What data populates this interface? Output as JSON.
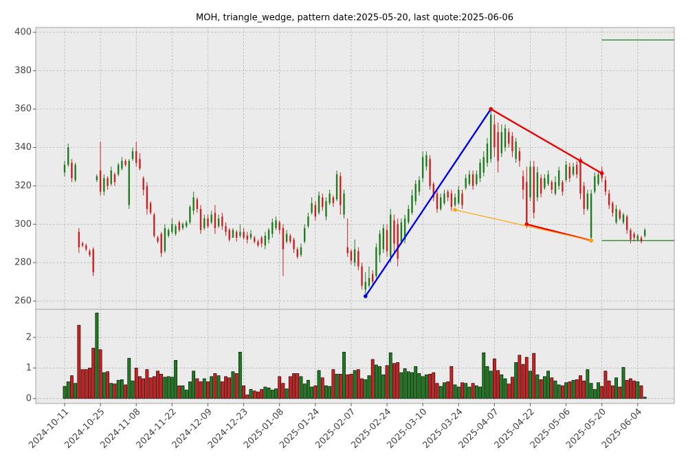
{
  "chart_data": {
    "type": "candlestick",
    "title": "MOH, triangle_wedge, pattern date:2025-05-20, last quote:2025-06-06",
    "up_color": "#1e7b1e",
    "down_color": "#cc1f1f",
    "grid": true,
    "xlim": [
      -8.06,
      170.2
    ],
    "xticks": [
      {
        "value": 0,
        "label": "2024-10-11"
      },
      {
        "value": 10,
        "label": "2024-10-25"
      },
      {
        "value": 20,
        "label": "2024-11-08"
      },
      {
        "value": 30,
        "label": "2024-11-22"
      },
      {
        "value": 40,
        "label": "2024-12-09"
      },
      {
        "value": 50,
        "label": "2024-12-23"
      },
      {
        "value": 60,
        "label": "2025-01-08"
      },
      {
        "value": 70,
        "label": "2025-01-24"
      },
      {
        "value": 80,
        "label": "2025-02-07"
      },
      {
        "value": 90,
        "label": "2025-02-24"
      },
      {
        "value": 100,
        "label": "2025-03-10"
      },
      {
        "value": 110,
        "label": "2025-03-24"
      },
      {
        "value": 120,
        "label": "2025-04-07"
      },
      {
        "value": 130,
        "label": "2025-04-22"
      },
      {
        "value": 140,
        "label": "2025-05-06"
      },
      {
        "value": 150,
        "label": "2025-05-20"
      },
      {
        "value": 160,
        "label": "2025-06-04"
      }
    ],
    "ylim": [
      255.7,
      402.5
    ],
    "yticks": [
      260,
      280,
      300,
      320,
      340,
      360,
      380,
      400
    ],
    "volume_ylim": [
      -0.16,
      2.92
    ],
    "volume_yticks": [
      0,
      1,
      2
    ],
    "open": [
      327,
      331,
      332,
      323,
      296,
      290,
      289,
      286,
      287,
      323,
      328,
      317,
      324,
      321,
      326,
      326,
      329,
      333,
      310,
      334,
      338,
      334,
      324,
      320,
      311,
      305,
      293,
      295,
      286,
      294,
      296,
      295,
      301,
      298,
      299,
      301,
      307,
      313,
      308,
      298,
      303,
      301,
      306,
      299,
      304,
      299,
      297,
      293,
      296,
      294,
      296,
      294,
      293,
      293,
      291,
      293,
      289,
      292,
      295,
      298,
      301,
      298,
      291,
      294,
      292,
      287,
      284,
      291,
      299,
      306,
      310,
      306,
      314,
      304,
      311,
      314,
      313,
      325,
      305,
      288,
      286,
      280,
      286,
      278,
      266,
      268,
      274,
      273,
      284,
      287,
      297,
      283,
      302,
      300,
      291,
      292,
      301,
      306,
      312,
      317,
      324,
      330,
      334,
      321,
      316,
      308,
      311,
      317,
      316,
      310,
      311,
      316,
      319,
      321,
      326,
      321,
      324,
      327,
      332,
      334,
      352,
      348,
      337,
      340,
      348,
      346,
      334,
      338,
      325,
      322,
      314,
      330,
      314,
      324,
      319,
      321,
      322,
      316,
      320,
      322,
      323,
      330,
      326,
      331,
      333,
      320,
      308,
      293,
      317,
      321,
      328,
      323,
      316,
      311,
      301,
      307,
      301,
      304,
      297,
      295,
      292,
      293,
      294
    ],
    "high": [
      333,
      342,
      334,
      332,
      298,
      291,
      290,
      287,
      288,
      326,
      343,
      326,
      325,
      330,
      327,
      332,
      335,
      334,
      334,
      340,
      343,
      337,
      325,
      322,
      312,
      306,
      294,
      296,
      300,
      298,
      303,
      300,
      302,
      301,
      302,
      310,
      317,
      314,
      310,
      305,
      305,
      307,
      310,
      305,
      306,
      301,
      298,
      298,
      297,
      300,
      298,
      296,
      297,
      294,
      292,
      294,
      296,
      298,
      303,
      304,
      302,
      300,
      297,
      295,
      293,
      288,
      290,
      300,
      306,
      314,
      312,
      317,
      316,
      314,
      318,
      315,
      328,
      327,
      318,
      303,
      287,
      292,
      288,
      280,
      275,
      278,
      276,
      290,
      297,
      300,
      300,
      308,
      305,
      303,
      303,
      305,
      310,
      318,
      323,
      325,
      338,
      338,
      336,
      322,
      318,
      316,
      318,
      318,
      318,
      316,
      320,
      318,
      326,
      328,
      328,
      328,
      334,
      338,
      345,
      360,
      357,
      353,
      352,
      352,
      350,
      348,
      345,
      340,
      328,
      330,
      333,
      333,
      330,
      326,
      326,
      328,
      323,
      325,
      330,
      323,
      333,
      332,
      332,
      333,
      335,
      322,
      318,
      318,
      327,
      328,
      330,
      325,
      318,
      312,
      310,
      308,
      306,
      305,
      298,
      296,
      295,
      294,
      298
    ],
    "low": [
      325,
      330,
      322,
      322,
      285,
      288,
      286,
      283,
      273,
      322,
      315,
      315,
      318,
      320,
      320,
      325,
      328,
      330,
      308,
      333,
      330,
      328,
      315,
      305,
      305,
      293,
      290,
      283,
      285,
      293,
      295,
      294,
      296,
      297,
      298,
      300,
      305,
      306,
      295,
      297,
      298,
      300,
      295,
      298,
      297,
      294,
      291,
      293,
      291,
      293,
      292,
      290,
      292,
      290,
      288,
      288,
      287,
      290,
      293,
      297,
      295,
      273,
      290,
      290,
      285,
      282,
      283,
      290,
      298,
      305,
      302,
      305,
      307,
      302,
      310,
      309,
      312,
      305,
      303,
      283,
      279,
      278,
      276,
      266,
      262,
      267,
      268,
      272,
      280,
      285,
      283,
      280,
      285,
      278,
      290,
      290,
      300,
      305,
      310,
      315,
      322,
      328,
      318,
      312,
      306,
      307,
      310,
      312,
      307,
      309,
      310,
      308,
      318,
      320,
      318,
      320,
      322,
      325,
      330,
      332,
      335,
      327,
      335,
      338,
      340,
      335,
      332,
      330,
      313,
      298,
      312,
      303,
      312,
      314,
      318,
      320,
      316,
      315,
      318,
      315,
      322,
      322,
      325,
      324,
      313,
      305,
      307,
      291,
      316,
      320,
      322,
      315,
      308,
      304,
      300,
      302,
      300,
      295,
      290,
      291,
      291,
      290,
      293
    ],
    "close": [
      331,
      340,
      324,
      331,
      288,
      289,
      287,
      284,
      275,
      325,
      317,
      324,
      320,
      328,
      322,
      331,
      333,
      331,
      333,
      338,
      332,
      329,
      318,
      308,
      306,
      294,
      291,
      285,
      298,
      297,
      300,
      299,
      297,
      300,
      301,
      309,
      314,
      308,
      297,
      303,
      299,
      305,
      298,
      303,
      299,
      296,
      292,
      297,
      293,
      296,
      293,
      292,
      295,
      291,
      289,
      290,
      294,
      297,
      301,
      302,
      297,
      287,
      295,
      291,
      287,
      283,
      288,
      298,
      304,
      311,
      304,
      315,
      309,
      312,
      316,
      311,
      326,
      310,
      316,
      285,
      281,
      287,
      278,
      268,
      270,
      272,
      270,
      288,
      295,
      298,
      286,
      305,
      290,
      282,
      301,
      303,
      308,
      315,
      321,
      323,
      335,
      336,
      320,
      314,
      308,
      314,
      316,
      314,
      309,
      314,
      318,
      310,
      324,
      326,
      320,
      326,
      332,
      335,
      342,
      357,
      340,
      333,
      348,
      350,
      342,
      338,
      343,
      333,
      318,
      301,
      330,
      306,
      327,
      316,
      324,
      326,
      318,
      322,
      328,
      317,
      331,
      324,
      330,
      326,
      316,
      308,
      316,
      316,
      325,
      326,
      324,
      317,
      310,
      306,
      308,
      303,
      305,
      297,
      292,
      293,
      294,
      291,
      297
    ],
    "volume": [
      0.4,
      0.55,
      0.75,
      0.5,
      2.4,
      0.95,
      0.95,
      1.0,
      1.65,
      2.8,
      1.6,
      0.85,
      0.88,
      0.5,
      0.48,
      0.6,
      0.62,
      0.45,
      1.32,
      0.58,
      1.0,
      0.72,
      0.65,
      0.95,
      0.68,
      0.72,
      0.9,
      0.8,
      0.7,
      0.72,
      0.7,
      1.25,
      0.42,
      0.42,
      0.28,
      0.55,
      0.9,
      0.65,
      0.55,
      0.65,
      0.55,
      0.72,
      0.82,
      0.75,
      0.55,
      0.72,
      0.68,
      0.88,
      0.82,
      1.52,
      0.42,
      0.12,
      0.3,
      0.25,
      0.22,
      0.3,
      0.38,
      0.35,
      0.28,
      0.32,
      0.72,
      0.5,
      0.32,
      0.72,
      0.82,
      0.82,
      0.72,
      0.48,
      0.6,
      0.38,
      0.42,
      0.92,
      0.68,
      0.42,
      0.4,
      0.95,
      0.8,
      0.8,
      1.52,
      0.78,
      0.8,
      0.92,
      0.95,
      0.65,
      0.62,
      0.75,
      1.28,
      1.1,
      1.05,
      0.78,
      1.08,
      1.5,
      1.15,
      1.18,
      0.85,
      0.98,
      0.88,
      0.85,
      1.05,
      0.82,
      0.72,
      0.78,
      0.8,
      0.85,
      0.5,
      0.4,
      0.52,
      0.55,
      1.05,
      0.45,
      0.38,
      0.52,
      0.5,
      0.38,
      0.5,
      0.42,
      0.38,
      1.5,
      1.05,
      0.9,
      1.3,
      0.92,
      0.78,
      0.65,
      0.48,
      0.7,
      1.18,
      1.42,
      1.12,
      1.35,
      0.9,
      1.48,
      0.78,
      0.62,
      0.72,
      0.9,
      0.68,
      0.58,
      0.45,
      0.42,
      0.52,
      0.55,
      0.6,
      0.62,
      0.75,
      0.58,
      0.95,
      0.5,
      0.3,
      0.52,
      0.4,
      0.9,
      0.58,
      0.42,
      0.68,
      0.38,
      1.02,
      0.6,
      0.65,
      0.58,
      0.55,
      0.42,
      0.05
    ],
    "lines": [
      {
        "color": "#0000ee",
        "x": [
          84,
          119
        ],
        "y": [
          262.5,
          360
        ]
      },
      {
        "color": "#ee0000",
        "x": [
          119,
          144,
          150
        ],
        "y": [
          360,
          333,
          326.5
        ]
      },
      {
        "color": "#ee0000",
        "x": [
          129,
          147
        ],
        "y": [
          300,
          291.5
        ]
      },
      {
        "color": "#ffa500",
        "x": [
          109,
          147
        ],
        "y": [
          307.5,
          291.5
        ]
      }
    ],
    "hlines": [
      {
        "color": "#1a7a1a",
        "y": 396,
        "xstart": 150
      },
      {
        "color": "#1a7a1a",
        "y": 291.5,
        "xstart": 150
      }
    ]
  }
}
